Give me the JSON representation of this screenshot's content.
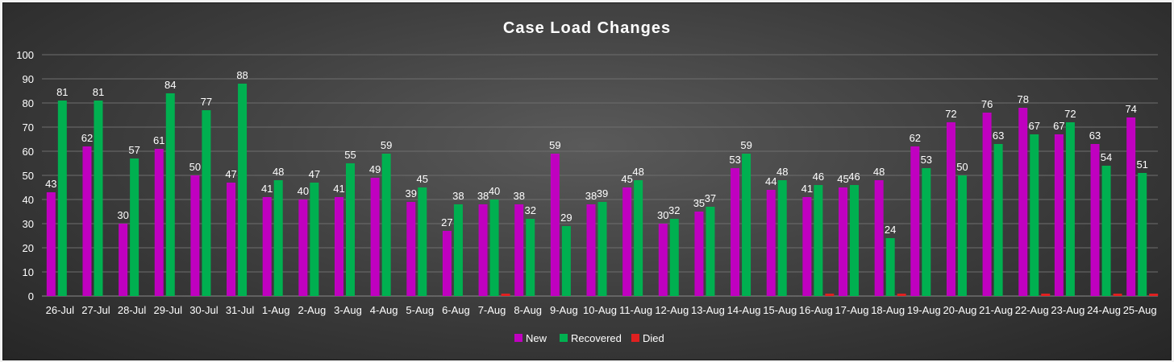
{
  "chart_data": {
    "type": "bar",
    "title": "Case Load Changes",
    "xlabel": "",
    "ylabel": "",
    "ylim": [
      0,
      100
    ],
    "yticks": [
      0,
      10,
      20,
      30,
      40,
      50,
      60,
      70,
      80,
      90,
      100
    ],
    "grid": true,
    "legend_position": "bottom",
    "categories": [
      "26-Jul",
      "27-Jul",
      "28-Jul",
      "29-Jul",
      "30-Jul",
      "31-Jul",
      "1-Aug",
      "2-Aug",
      "3-Aug",
      "4-Aug",
      "5-Aug",
      "6-Aug",
      "7-Aug",
      "8-Aug",
      "9-Aug",
      "10-Aug",
      "11-Aug",
      "12-Aug",
      "13-Aug",
      "14-Aug",
      "15-Aug",
      "16-Aug",
      "17-Aug",
      "18-Aug",
      "19-Aug",
      "20-Aug",
      "21-Aug",
      "22-Aug",
      "23-Aug",
      "24-Aug",
      "25-Aug"
    ],
    "series": [
      {
        "name": "New",
        "color": "#c000c0",
        "values": [
          43,
          62,
          30,
          61,
          50,
          47,
          41,
          40,
          41,
          49,
          39,
          27,
          38,
          38,
          59,
          38,
          45,
          30,
          35,
          53,
          44,
          41,
          45,
          48,
          62,
          72,
          76,
          78,
          67,
          63,
          74
        ]
      },
      {
        "name": "Recovered",
        "color": "#00b050",
        "values": [
          81,
          81,
          57,
          84,
          77,
          88,
          48,
          47,
          55,
          59,
          45,
          38,
          40,
          32,
          29,
          39,
          48,
          32,
          37,
          59,
          48,
          46,
          46,
          24,
          53,
          50,
          63,
          67,
          72,
          54,
          51
        ]
      },
      {
        "name": "Died",
        "color": "#e02020",
        "values": [
          0,
          0,
          0,
          0,
          0,
          0,
          0,
          0,
          0,
          0,
          0,
          0,
          1,
          0,
          0,
          0,
          0,
          0,
          0,
          0,
          0,
          1,
          0,
          1,
          0,
          0,
          0,
          1,
          0,
          1,
          1
        ]
      }
    ]
  }
}
